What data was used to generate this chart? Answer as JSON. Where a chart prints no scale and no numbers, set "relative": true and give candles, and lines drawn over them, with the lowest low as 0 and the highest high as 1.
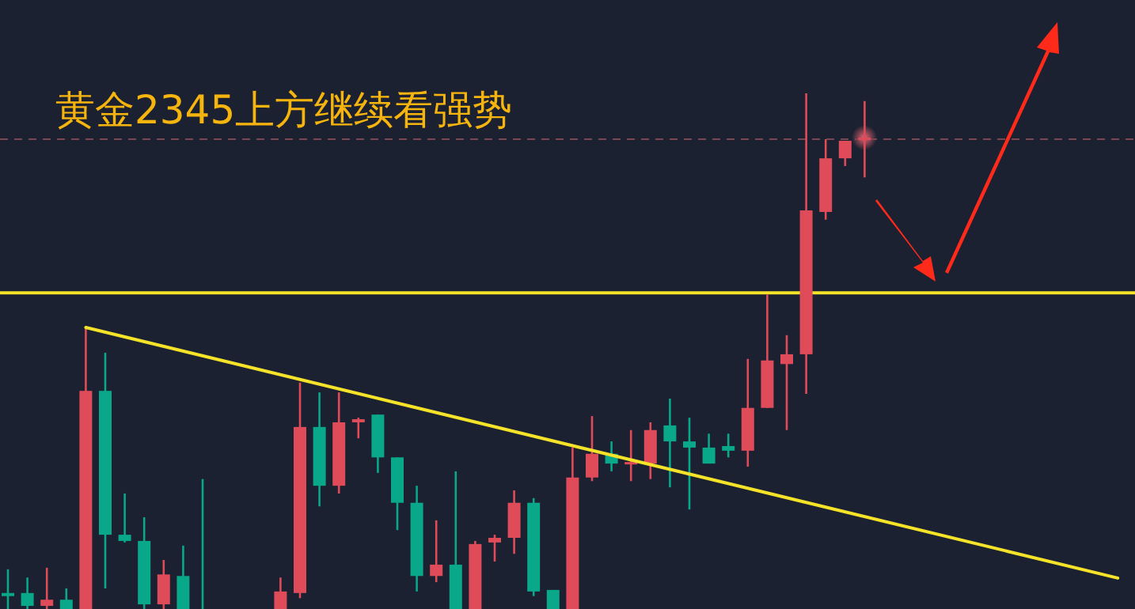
{
  "chart_data": {
    "type": "candlestick",
    "title": "黄金2345上方继续看强势",
    "relative": true,
    "categories": [
      null,
      null,
      null,
      null,
      null,
      null,
      null,
      null,
      null,
      null,
      null,
      null,
      null,
      null,
      null,
      null,
      null,
      null,
      null,
      null,
      null,
      null,
      null,
      null,
      null,
      null,
      null,
      null,
      null,
      null,
      null,
      null,
      null,
      null,
      null,
      null,
      null,
      null,
      null,
      null,
      null,
      null,
      null,
      null,
      null,
      null,
      null,
      null,
      null,
      null,
      null,
      null,
      null,
      null,
      null,
      null,
      null,
      null
    ],
    "colors": [
      "#0aa88a",
      "#0aa88a",
      "#e04b5a",
      "#0aa88a",
      "#e04b5a",
      "#0aa88a",
      "#0aa88a",
      "#0aa88a",
      "#e04b5a",
      "#0aa88a",
      "#0aa88a",
      null,
      null,
      null,
      "#e04b5a",
      "#e04b5a",
      "#0aa88a",
      "#e04b5a",
      "#e04b5a",
      "#0aa88a",
      "#0aa88a",
      "#0aa88a",
      "#e04b5a",
      "#0aa88a",
      "#e04b5a",
      "#e04b5a",
      "#e04b5a",
      "#0aa88a",
      "#0aa88a",
      "#e04b5a",
      "#e04b5a",
      "#0aa88a",
      "#e04b5a",
      "#e04b5a",
      "#0aa88a",
      "#0aa88a",
      "#0aa88a",
      "#0aa88a",
      "#e04b5a",
      "#e04b5a",
      "#e04b5a",
      "#e04b5a",
      "#e04b5a",
      "#e04b5a",
      "#e04b5a",
      null,
      null,
      null,
      null,
      null,
      null,
      null,
      null,
      null,
      null,
      null,
      null,
      null
    ],
    "ohlc": [
      [
        0.031,
        0.077,
        0,
        0.025
      ],
      [
        0.031,
        0.061,
        0,
        0.006
      ],
      [
        0.006,
        0.08,
        0,
        0.018
      ],
      [
        0.018,
        0.04,
        0,
        0
      ],
      [
        0,
        0.546,
        0,
        0.423
      ],
      [
        0.423,
        0.497,
        0.04,
        0.144
      ],
      [
        0.144,
        0.224,
        0.129,
        0.132
      ],
      [
        0.132,
        0.178,
        0,
        0.009
      ],
      [
        0.009,
        0.095,
        0,
        0.067
      ],
      [
        0.064,
        0.123,
        0,
        0
      ],
      [
        0,
        0.252,
        0,
        0
      ],
      null,
      null,
      null,
      [
        0,
        0.061,
        0,
        0.034
      ],
      [
        0.031,
        0.439,
        0.021,
        0.353
      ],
      [
        0.353,
        0.42,
        0.199,
        0.239
      ],
      [
        0.239,
        0.42,
        0.224,
        0.362
      ],
      [
        0.362,
        0.371,
        0.331,
        0.368
      ],
      [
        0.377,
        0.377,
        0.264,
        0.294
      ],
      [
        0.294,
        0.294,
        0.153,
        0.206
      ],
      [
        0.206,
        0.239,
        0.034,
        0.064
      ],
      [
        0.064,
        0.172,
        0.052,
        0.086
      ],
      [
        0.086,
        0.267,
        0,
        0
      ],
      [
        0,
        0.132,
        0,
        0.126
      ],
      [
        0.129,
        0.144,
        0.092,
        0.138
      ],
      [
        0.138,
        0.23,
        0.107,
        0.206
      ],
      [
        0.206,
        0.215,
        0.025,
        0.034
      ],
      [
        0.037,
        0.037,
        0,
        0
      ],
      [
        0,
        0.313,
        0,
        0.255
      ],
      [
        0.255,
        0.374,
        0.248,
        0.301
      ],
      [
        0.301,
        0.325,
        0.267,
        0.282
      ],
      [
        0.282,
        0.347,
        0.248,
        0.285
      ],
      [
        0.282,
        0.362,
        0.252,
        0.347
      ],
      [
        0.356,
        0.408,
        0.236,
        0.325
      ],
      [
        0.325,
        0.371,
        0.193,
        0.313
      ],
      [
        0.313,
        0.34,
        0.282,
        0.282
      ],
      [
        0.316,
        0.34,
        0.294,
        0.307
      ],
      [
        0.307,
        0.485,
        0.276,
        0.39
      ],
      [
        0.39,
        0.61,
        0.39,
        0.482
      ],
      [
        0.475,
        0.531,
        0.347,
        0.494
      ],
      [
        0.494,
        1,
        0.417,
        0.773
      ],
      [
        0.77,
        0.911,
        0.755,
        0.874
      ],
      [
        0.874,
        0.908,
        0.859,
        0.908
      ],
      [
        0.911,
        0.985,
        0.837,
        0.914
      ],
      null,
      null,
      null,
      null,
      null,
      null,
      null,
      null,
      null,
      null,
      null,
      null,
      null
    ],
    "series": [
      {
        "type": "line",
        "color": "#f5e32a",
        "values": [
          null,
          null,
          null,
          null,
          0.546,
          null,
          null,
          null,
          null,
          null,
          null,
          null,
          null,
          null,
          null,
          null,
          null,
          null,
          null,
          null,
          null,
          null,
          null,
          null,
          null,
          null,
          null,
          null,
          null,
          null,
          null,
          null,
          null,
          null,
          null,
          null,
          null,
          null,
          null,
          null,
          null,
          null,
          null,
          null,
          null,
          null,
          null,
          null,
          null,
          null,
          null,
          null,
          null,
          null,
          null,
          null,
          null,
          0.06
        ]
      }
    ],
    "ref_lines": [
      {
        "axis": "y",
        "value": 0.613,
        "color": "#f5e32a",
        "line_style": "solid"
      },
      {
        "axis": "y",
        "value": 0.911,
        "color": "#7a4652",
        "line_style": "dashed"
      }
    ]
  }
}
